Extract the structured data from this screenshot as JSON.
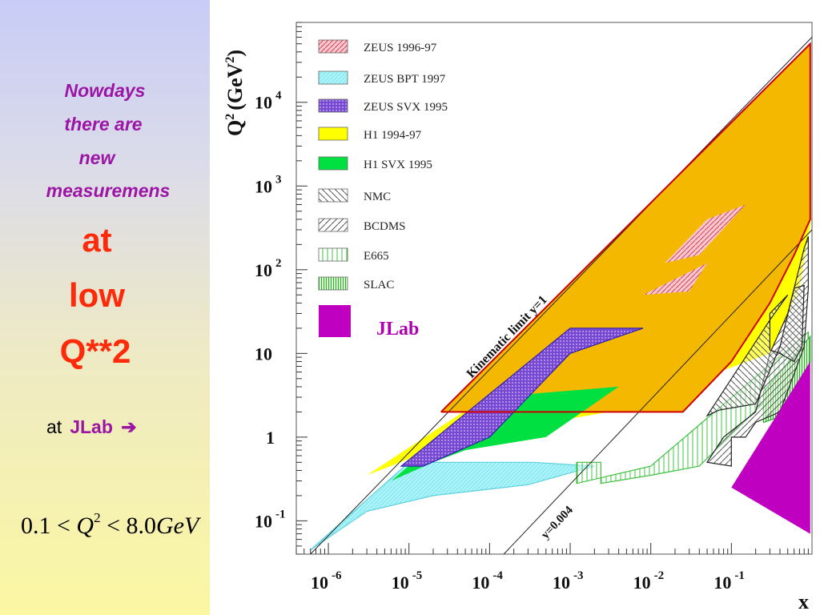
{
  "left_panel": {
    "lines": [
      "Nowdays",
      "there are",
      "new",
      "measuremens"
    ],
    "big_lines": [
      "at",
      "low",
      "Q**2"
    ],
    "at_label": "at",
    "jlab_label": "JLab",
    "arrow": "➔",
    "formula": {
      "lhs": "0.1",
      "lt1": "<",
      "var": "Q",
      "exp": "2",
      "lt2": "<",
      "rhs": "8.0",
      "unit": "GeV"
    }
  },
  "chart_data": {
    "type": "area",
    "ylabel_main": "Q",
    "ylabel_exp": "2",
    "ylabel_unit": "(GeV",
    "ylabel_unit_exp": "2",
    "ylabel_close": ")",
    "xlabel": "x",
    "x_scale": "log",
    "y_scale": "log",
    "xlim": [
      4e-07,
      1
    ],
    "ylim": [
      0.04,
      90000
    ],
    "x_ticks": [
      {
        "value": 1e-06,
        "base": "10",
        "exp": "-6"
      },
      {
        "value": 1e-05,
        "base": "10",
        "exp": "-5"
      },
      {
        "value": 0.0001,
        "base": "10",
        "exp": "-4"
      },
      {
        "value": 0.001,
        "base": "10",
        "exp": "-3"
      },
      {
        "value": 0.01,
        "base": "10",
        "exp": "-2"
      },
      {
        "value": 0.1,
        "base": "10",
        "exp": "-1"
      }
    ],
    "y_ticks": [
      {
        "value": 0.1,
        "base": "10",
        "exp": "-1"
      },
      {
        "value": 1,
        "base": "1",
        "exp": ""
      },
      {
        "value": 10,
        "base": "10",
        "exp": ""
      },
      {
        "value": 100,
        "base": "10",
        "exp": "2"
      },
      {
        "value": 1000,
        "base": "10",
        "exp": "3"
      },
      {
        "value": 10000,
        "base": "10",
        "exp": "4"
      }
    ],
    "legend_position": "top-left",
    "legend": [
      {
        "name": "ZEUS 1996-97",
        "color": "#f0a0a8",
        "pattern": "hatch-red"
      },
      {
        "name": "ZEUS BPT 1997",
        "color": "#a8f4f8",
        "pattern": "solid-cyan"
      },
      {
        "name": "ZEUS SVX 1995",
        "color": "#7848d0",
        "pattern": "dots-purple"
      },
      {
        "name": "H1 1994-97",
        "color": "#ffff00",
        "pattern": "solid-yellow"
      },
      {
        "name": "H1 SVX 1995",
        "color": "#00e040",
        "pattern": "solid-green"
      },
      {
        "name": "NMC",
        "color": "#707070",
        "pattern": "back-diag"
      },
      {
        "name": "BCDMS",
        "color": "#707070",
        "pattern": "fwd-diag"
      },
      {
        "name": "E665",
        "color": "#40c040",
        "pattern": "vert"
      },
      {
        "name": "SLAC",
        "color": "#40c040",
        "pattern": "vert-dense"
      },
      {
        "name": "JLab",
        "color": "#c000c0",
        "pattern": "solid-magenta"
      }
    ],
    "annotations": [
      "Kinematic limit   y=1",
      "y=0.004"
    ],
    "regions": [
      {
        "name": "H1 1994-97",
        "fill": "#ffff00",
        "points": [
          [
            3e-06,
            0.35
          ],
          [
            0.0002,
            5
          ],
          [
            0.95,
            50000
          ],
          [
            0.98,
            400
          ],
          [
            0.7,
            60
          ],
          [
            0.3,
            10
          ],
          [
            0.003,
            2
          ],
          [
            5e-05,
            1
          ],
          [
            3e-06,
            0.35
          ]
        ]
      },
      {
        "name": "ZEUS 1996-97",
        "fill": "#f5b800",
        "points": [
          [
            2.5e-05,
            2
          ],
          [
            0.95,
            50000
          ],
          [
            0.95,
            400
          ],
          [
            0.6,
            150
          ],
          [
            0.3,
            40
          ],
          [
            0.1,
            8
          ],
          [
            0.025,
            2
          ],
          [
            2.5e-05,
            2
          ]
        ]
      },
      {
        "name": "ZEUS BPT 1997",
        "fill": "#a8f4f8",
        "points": [
          [
            6e-07,
            0.045
          ],
          [
            1e-05,
            0.5
          ],
          [
            0.00035,
            0.5
          ],
          [
            0.002,
            0.45
          ],
          [
            0.0003,
            0.27
          ],
          [
            2e-05,
            0.2
          ],
          [
            3e-06,
            0.13
          ],
          [
            6e-07,
            0.045
          ]
        ]
      },
      {
        "name": "H1 SVX 1995",
        "fill": "#00e040",
        "points": [
          [
            6e-06,
            0.3
          ],
          [
            2e-05,
            0.5
          ],
          [
            5e-05,
            0.7
          ],
          [
            0.0005,
            1
          ],
          [
            0.004,
            4
          ],
          [
            0.0001,
            3
          ],
          [
            6e-06,
            0.3
          ]
        ]
      },
      {
        "name": "ZEUS SVX 1995",
        "fill": "#6a3cc8",
        "points": [
          [
            8e-06,
            0.45
          ],
          [
            1.5e-05,
            0.45
          ],
          [
            0.0001,
            1
          ],
          [
            0.001,
            10
          ],
          [
            0.008,
            20
          ],
          [
            0.001,
            20
          ],
          [
            8e-06,
            0.45
          ]
        ]
      },
      {
        "name": "E665",
        "fill": "#d8f0d0",
        "points": [
          [
            0.0012,
            0.28
          ],
          [
            0.01,
            0.45
          ],
          [
            0.9,
            18
          ],
          [
            0.9,
            10
          ],
          [
            0.4,
            4
          ],
          [
            0.04,
            0.45
          ],
          [
            0.01,
            0.35
          ],
          [
            0.0024,
            0.28
          ],
          [
            0.0024,
            0.5
          ],
          [
            0.0012,
            0.5
          ],
          [
            0.0012,
            0.28
          ]
        ]
      },
      {
        "name": "SLAC",
        "fill": "#b8e0a8",
        "points": [
          [
            0.25,
            3.5
          ],
          [
            0.95,
            16
          ],
          [
            0.95,
            8
          ],
          [
            0.6,
            2
          ],
          [
            0.25,
            1.5
          ],
          [
            0.25,
            3.5
          ]
        ]
      },
      {
        "name": "BCDMS",
        "fill": "#bbbbbb",
        "points": [
          [
            0.05,
            0.5
          ],
          [
            0.08,
            1
          ],
          [
            0.2,
            2
          ],
          [
            0.3,
            10
          ],
          [
            0.5,
            30
          ],
          [
            0.8,
            180
          ],
          [
            0.9,
            250
          ],
          [
            0.9,
            60
          ],
          [
            0.8,
            12
          ],
          [
            0.4,
            2
          ],
          [
            0.2,
            1.5
          ],
          [
            0.15,
            1
          ],
          [
            0.1,
            1
          ],
          [
            0.1,
            0.45
          ],
          [
            0.05,
            0.5
          ]
        ]
      },
      {
        "name": "NMC",
        "fill": "#cfcfcf",
        "points": [
          [
            0.05,
            1.8
          ],
          [
            0.07,
            2.1
          ],
          [
            0.2,
            2.5
          ],
          [
            0.4,
            12
          ],
          [
            0.6,
            60
          ],
          [
            0.8,
            65
          ],
          [
            0.75,
            12
          ],
          [
            0.6,
            8
          ],
          [
            0.4,
            10
          ],
          [
            0.3,
            11
          ],
          [
            0.3,
            30
          ],
          [
            0.5,
            50
          ],
          [
            0.3,
            25
          ],
          [
            0.05,
            1.8
          ]
        ]
      },
      {
        "name": "JLab",
        "fill": "#c000c0",
        "points": [
          [
            0.1,
            0.25
          ],
          [
            0.95,
            8
          ],
          [
            0.95,
            0.07
          ],
          [
            0.1,
            0.25
          ]
        ]
      }
    ],
    "lines": [
      {
        "name": "kinematic-limit-y1",
        "color": "#222222",
        "points": [
          [
            6e-07,
            0.04
          ],
          [
            1,
            60000
          ]
        ]
      },
      {
        "name": "y0004",
        "color": "#222222",
        "points": [
          [
            0.00015,
            0.04
          ],
          [
            1,
            300
          ]
        ]
      },
      {
        "name": "zeus-boundary",
        "color": "#cc0000",
        "points": [
          [
            2.5e-05,
            2
          ],
          [
            0.95,
            50000
          ],
          [
            0.95,
            400
          ],
          [
            0.6,
            150
          ],
          [
            0.3,
            40
          ],
          [
            0.1,
            8
          ],
          [
            0.025,
            2
          ],
          [
            2.5e-05,
            2
          ]
        ]
      }
    ],
    "jlab_legend_label": "JLab",
    "kinematic_label": "Kinematic limit   y=1",
    "y004_label": "y=0.004"
  }
}
